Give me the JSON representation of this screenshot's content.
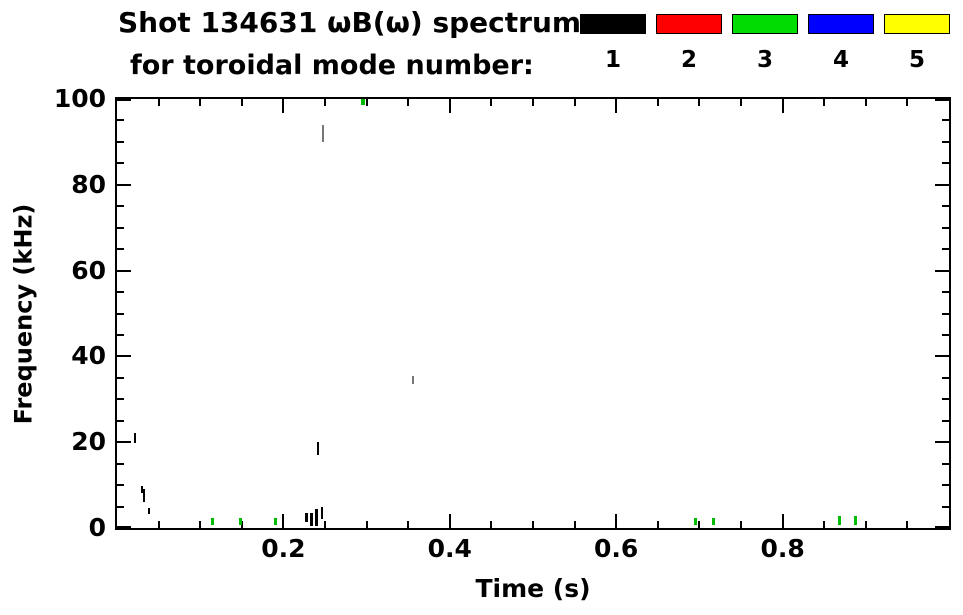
{
  "header": {
    "title_line1": "Shot 134631 ωB(ω) spectrum",
    "title_line2": "for toroidal mode number:"
  },
  "legend": {
    "modes": [
      {
        "label": "1",
        "color": "#000000"
      },
      {
        "label": "2",
        "color": "#ff0000"
      },
      {
        "label": "3",
        "color": "#00dd00"
      },
      {
        "label": "4",
        "color": "#0000ff"
      },
      {
        "label": "5",
        "color": "#ffff00"
      }
    ]
  },
  "axes": {
    "x_title": "Time (s)",
    "y_title": "Frequency (kHz)"
  },
  "chart_data": {
    "type": "scatter",
    "title": "Shot 134631 ωB(ω) spectrum",
    "subtitle": "for toroidal mode number: 1 2 3 4 5",
    "xlabel": "Time (s)",
    "ylabel": "Frequency (kHz)",
    "xlim": [
      0.0,
      1.0
    ],
    "ylim": [
      0,
      100
    ],
    "grid": false,
    "legend_position": "top",
    "x_major_ticks": [
      0.2,
      0.4,
      0.6,
      0.8
    ],
    "x_tick_labels": [
      "0.2",
      "0.4",
      "0.6",
      "0.8"
    ],
    "x_minor_step": 0.05,
    "y_major_ticks": [
      0,
      20,
      40,
      60,
      80,
      100
    ],
    "y_tick_labels": [
      "0",
      "20",
      "40",
      "60",
      "80",
      "100"
    ],
    "y_minor_step": 5,
    "series": [
      {
        "name": "mode 1",
        "color": "#000000",
        "points": [
          {
            "t": 0.022,
            "f": 21.0,
            "h": 2.5,
            "w": 2
          },
          {
            "t": 0.03,
            "f": 9.0,
            "h": 1.5,
            "w": 2
          },
          {
            "t": 0.033,
            "f": 7.5,
            "h": 3.0,
            "w": 2
          },
          {
            "t": 0.038,
            "f": 4.0,
            "h": 1.5,
            "w": 2
          },
          {
            "t": 0.228,
            "f": 2.5,
            "h": 2.0,
            "w": 3
          },
          {
            "t": 0.234,
            "f": 2.0,
            "h": 3.0,
            "w": 3
          },
          {
            "t": 0.24,
            "f": 2.5,
            "h": 4.0,
            "w": 3
          },
          {
            "t": 0.246,
            "f": 3.5,
            "h": 3.0,
            "w": 2
          },
          {
            "t": 0.242,
            "f": 18.5,
            "h": 3.0,
            "w": 2
          }
        ]
      },
      {
        "name": "mode 1 faint",
        "color": "#777777",
        "points": [
          {
            "t": 0.247,
            "f": 92.0,
            "h": 4.0,
            "w": 2
          },
          {
            "t": 0.356,
            "f": 34.5,
            "h": 2.0,
            "w": 2
          }
        ]
      },
      {
        "name": "mode 3",
        "color": "#00bb00",
        "points": [
          {
            "t": 0.115,
            "f": 1.5,
            "h": 1.5,
            "w": 3
          },
          {
            "t": 0.148,
            "f": 1.5,
            "h": 1.5,
            "w": 3
          },
          {
            "t": 0.19,
            "f": 1.5,
            "h": 1.5,
            "w": 3
          },
          {
            "t": 0.296,
            "f": 99.5,
            "h": 1.5,
            "w": 4
          },
          {
            "t": 0.695,
            "f": 1.5,
            "h": 1.5,
            "w": 3
          },
          {
            "t": 0.717,
            "f": 1.5,
            "h": 1.5,
            "w": 3
          },
          {
            "t": 0.868,
            "f": 1.8,
            "h": 2.0,
            "w": 3
          },
          {
            "t": 0.888,
            "f": 1.8,
            "h": 2.0,
            "w": 3
          }
        ]
      }
    ]
  }
}
